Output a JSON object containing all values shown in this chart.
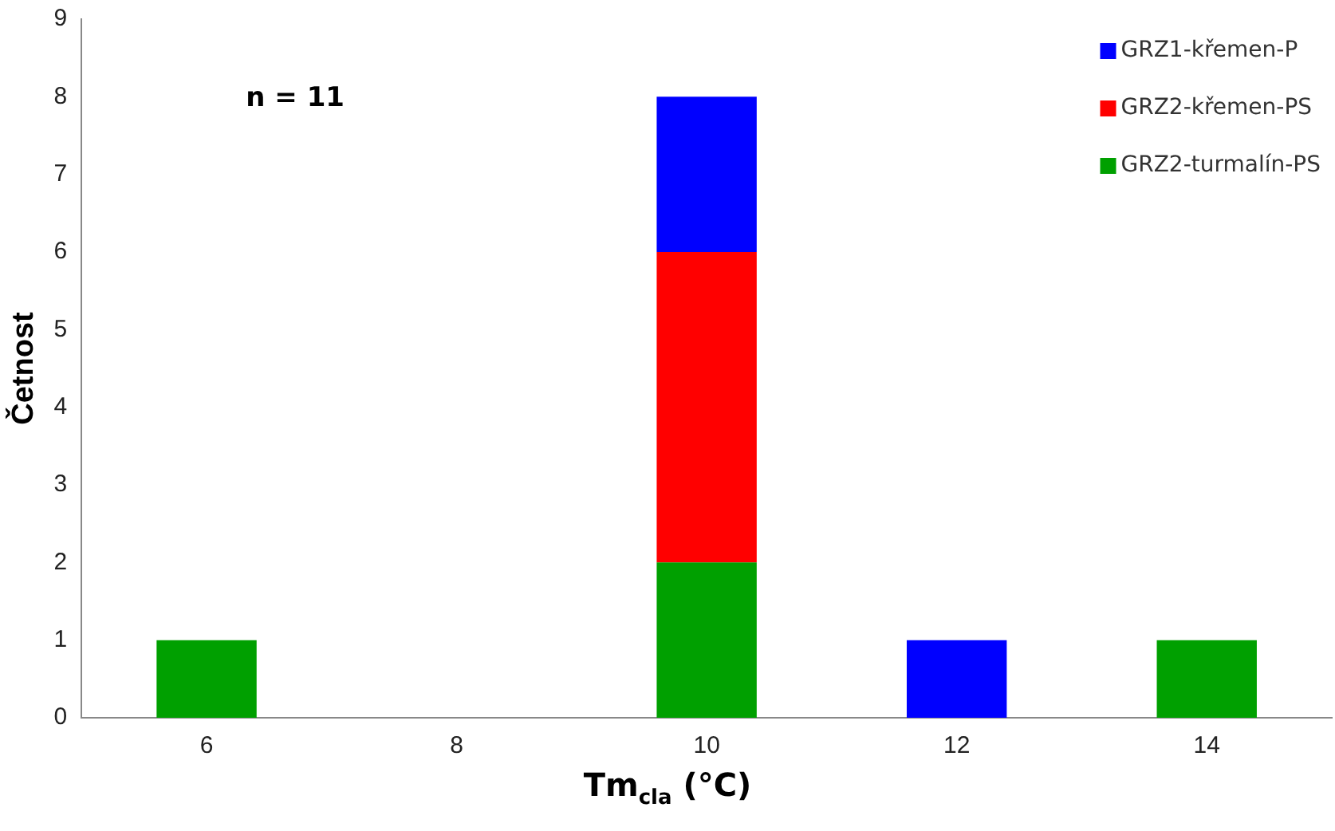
{
  "chart_data": {
    "type": "bar",
    "stacked": true,
    "categories": [
      "6",
      "8",
      "10",
      "12",
      "14"
    ],
    "series": [
      {
        "name": "GRZ2-turmalín-PS",
        "color": "#00a000",
        "values": [
          1,
          0,
          2,
          0,
          1
        ]
      },
      {
        "name": "GRZ2-křemen-PS",
        "color": "#ff0000",
        "values": [
          0,
          0,
          4,
          0,
          0
        ]
      },
      {
        "name": "GRZ1-křemen-P",
        "color": "#0000ff",
        "values": [
          0,
          0,
          2,
          1,
          0
        ]
      }
    ],
    "xlabel": "Tm$_{cla}$ (°C)",
    "ylabel": "Četnost",
    "ylim": [
      0,
      9
    ],
    "yticks": [
      0,
      1,
      2,
      3,
      4,
      5,
      6,
      7,
      8,
      9
    ],
    "annotations": [
      "n = 11"
    ],
    "legend": "top right",
    "grid": false
  }
}
